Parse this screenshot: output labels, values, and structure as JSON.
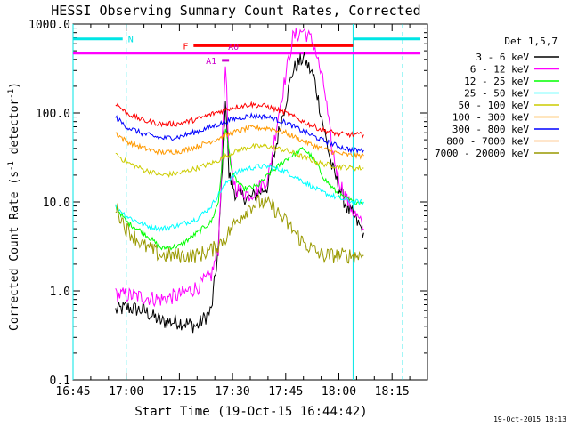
{
  "chart_data": {
    "type": "line",
    "title": "HESSI Observing Summary Count Rates, Corrected",
    "xlabel": "Start Time (19-Oct-15 16:44:42)",
    "ylabel_parts": [
      "Corrected Count Rate (s",
      "-1",
      " detector",
      "-1",
      ")"
    ],
    "ylabel": "Corrected Count Rate (s-1 detector-1)",
    "y_scale": "log",
    "ylim": [
      0.1,
      1000
    ],
    "y_ticks": [
      {
        "value": 0.1,
        "label": "0.1"
      },
      {
        "value": 1,
        "label": "1.0"
      },
      {
        "value": 10,
        "label": "10.0"
      },
      {
        "value": 100,
        "label": "100.0"
      },
      {
        "value": 1000,
        "label": "1000.0"
      }
    ],
    "xlim": [
      "16:45",
      "18:25"
    ],
    "x_ticks": [
      "16:45",
      "17:00",
      "17:15",
      "17:30",
      "17:45",
      "18:00",
      "18:15"
    ],
    "timestamp": "19-Oct-2015 18:13",
    "legend_title": "Det 1,5,7",
    "legend_placement": "right",
    "series": [
      {
        "name": "3 - 6 keV",
        "color": "#000000",
        "points": [
          [
            "16:57",
            0.6
          ],
          [
            "17:00",
            0.65
          ],
          [
            "17:05",
            0.6
          ],
          [
            "17:10",
            0.45
          ],
          [
            "17:15",
            0.45
          ],
          [
            "17:20",
            0.4
          ],
          [
            "17:24",
            0.6
          ],
          [
            "17:26",
            3
          ],
          [
            "17:28",
            150
          ],
          [
            "17:29",
            20
          ],
          [
            "17:31",
            12
          ],
          [
            "17:35",
            11
          ],
          [
            "17:40",
            15
          ],
          [
            "17:43",
            60
          ],
          [
            "17:47",
            300
          ],
          [
            "17:50",
            420
          ],
          [
            "17:53",
            250
          ],
          [
            "17:56",
            60
          ],
          [
            "17:58",
            25
          ],
          [
            "18:00",
            15
          ],
          [
            "18:02",
            9
          ],
          [
            "18:04",
            7
          ],
          [
            "18:07",
            4.5
          ]
        ]
      },
      {
        "name": "6 - 12 keV",
        "color": "#ff00ff",
        "points": [
          [
            "16:57",
            0.9
          ],
          [
            "17:00",
            0.9
          ],
          [
            "17:05",
            0.85
          ],
          [
            "17:10",
            0.8
          ],
          [
            "17:15",
            0.9
          ],
          [
            "17:20",
            1.1
          ],
          [
            "17:24",
            1.5
          ],
          [
            "17:26",
            3
          ],
          [
            "17:28",
            400
          ],
          [
            "17:29",
            30
          ],
          [
            "17:31",
            14
          ],
          [
            "17:35",
            12
          ],
          [
            "17:40",
            18
          ],
          [
            "17:43",
            100
          ],
          [
            "17:47",
            700
          ],
          [
            "17:50",
            850
          ],
          [
            "17:53",
            600
          ],
          [
            "17:56",
            180
          ],
          [
            "17:58",
            40
          ],
          [
            "18:00",
            18
          ],
          [
            "18:02",
            11
          ],
          [
            "18:04",
            8
          ],
          [
            "18:07",
            5
          ]
        ]
      },
      {
        "name": "12 - 25 keV",
        "color": "#00ff00",
        "points": [
          [
            "16:57",
            9
          ],
          [
            "17:00",
            6
          ],
          [
            "17:05",
            4.5
          ],
          [
            "17:10",
            3
          ],
          [
            "17:15",
            3.2
          ],
          [
            "17:20",
            4.5
          ],
          [
            "17:24",
            6
          ],
          [
            "17:26",
            10
          ],
          [
            "17:28",
            70
          ],
          [
            "17:30",
            20
          ],
          [
            "17:33",
            14
          ],
          [
            "17:37",
            15
          ],
          [
            "17:40",
            20
          ],
          [
            "17:45",
            30
          ],
          [
            "17:50",
            40
          ],
          [
            "17:53",
            30
          ],
          [
            "17:56",
            18
          ],
          [
            "18:00",
            12
          ],
          [
            "18:04",
            10
          ],
          [
            "18:07",
            10
          ]
        ]
      },
      {
        "name": "25 - 50 keV",
        "color": "#00ffff",
        "points": [
          [
            "16:57",
            9
          ],
          [
            "17:00",
            7
          ],
          [
            "17:05",
            5.5
          ],
          [
            "17:10",
            5
          ],
          [
            "17:15",
            5.5
          ],
          [
            "17:20",
            6.5
          ],
          [
            "17:24",
            9
          ],
          [
            "17:27",
            14
          ],
          [
            "17:30",
            20
          ],
          [
            "17:33",
            23
          ],
          [
            "17:37",
            25
          ],
          [
            "17:40",
            25
          ],
          [
            "17:45",
            22
          ],
          [
            "17:50",
            17
          ],
          [
            "17:55",
            13
          ],
          [
            "18:00",
            11
          ],
          [
            "18:04",
            10
          ],
          [
            "18:07",
            10
          ]
        ]
      },
      {
        "name": "50 - 100 keV",
        "color": "#cccc00",
        "points": [
          [
            "16:57",
            35
          ],
          [
            "17:00",
            28
          ],
          [
            "17:05",
            23
          ],
          [
            "17:10",
            20
          ],
          [
            "17:15",
            21
          ],
          [
            "17:20",
            24
          ],
          [
            "17:25",
            28
          ],
          [
            "17:30",
            36
          ],
          [
            "17:35",
            42
          ],
          [
            "17:40",
            42
          ],
          [
            "17:45",
            38
          ],
          [
            "17:50",
            32
          ],
          [
            "17:55",
            27
          ],
          [
            "18:00",
            25
          ],
          [
            "18:04",
            24
          ],
          [
            "18:07",
            24
          ]
        ]
      },
      {
        "name": "100 - 300 keV",
        "color": "#ff9900",
        "points": [
          [
            "16:57",
            60
          ],
          [
            "17:00",
            48
          ],
          [
            "17:05",
            40
          ],
          [
            "17:10",
            36
          ],
          [
            "17:15",
            37
          ],
          [
            "17:20",
            42
          ],
          [
            "17:25",
            50
          ],
          [
            "17:30",
            60
          ],
          [
            "17:35",
            68
          ],
          [
            "17:40",
            68
          ],
          [
            "17:45",
            60
          ],
          [
            "17:50",
            48
          ],
          [
            "17:55",
            40
          ],
          [
            "18:00",
            35
          ],
          [
            "18:04",
            33
          ],
          [
            "18:07",
            33
          ]
        ]
      },
      {
        "name": "300 - 800 keV",
        "color": "#0000ff",
        "points": [
          [
            "16:57",
            90
          ],
          [
            "17:00",
            70
          ],
          [
            "17:05",
            58
          ],
          [
            "17:10",
            52
          ],
          [
            "17:15",
            54
          ],
          [
            "17:20",
            62
          ],
          [
            "17:25",
            72
          ],
          [
            "17:30",
            85
          ],
          [
            "17:35",
            93
          ],
          [
            "17:40",
            90
          ],
          [
            "17:45",
            78
          ],
          [
            "17:50",
            62
          ],
          [
            "17:55",
            50
          ],
          [
            "18:00",
            42
          ],
          [
            "18:04",
            38
          ],
          [
            "18:07",
            38
          ]
        ]
      },
      {
        "name": "800 - 7000 keV",
        "color": "#ff9933",
        "points": []
      },
      {
        "name": "7000 - 20000 keV",
        "color": "#999900",
        "points": [
          [
            "16:57",
            9
          ],
          [
            "17:00",
            5
          ],
          [
            "17:05",
            3.2
          ],
          [
            "17:10",
            2.5
          ],
          [
            "17:15",
            2.5
          ],
          [
            "17:20",
            2.5
          ],
          [
            "17:25",
            3
          ],
          [
            "17:28",
            4
          ],
          [
            "17:31",
            6
          ],
          [
            "17:35",
            9
          ],
          [
            "17:38",
            10
          ],
          [
            "17:41",
            9
          ],
          [
            "17:45",
            6
          ],
          [
            "17:50",
            3.5
          ],
          [
            "17:55",
            2.5
          ],
          [
            "18:00",
            2.5
          ],
          [
            "18:04",
            2.5
          ],
          [
            "18:07",
            2.5
          ]
        ]
      },
      {
        "name": "",
        "color": "#ff0000",
        "points": [
          [
            "16:57",
            130
          ],
          [
            "17:00",
            100
          ],
          [
            "17:05",
            82
          ],
          [
            "17:10",
            75
          ],
          [
            "17:15",
            76
          ],
          [
            "17:20",
            85
          ],
          [
            "17:25",
            100
          ],
          [
            "17:30",
            115
          ],
          [
            "17:35",
            125
          ],
          [
            "17:40",
            118
          ],
          [
            "17:45",
            100
          ],
          [
            "17:50",
            80
          ],
          [
            "17:55",
            65
          ],
          [
            "18:00",
            58
          ],
          [
            "18:04",
            57
          ],
          [
            "18:07",
            57
          ]
        ]
      }
    ],
    "annotations": {
      "N": {
        "label": "N",
        "segments": [
          [
            "16:45",
            "16:59"
          ],
          [
            "18:04",
            "18:23"
          ]
        ],
        "level": 680,
        "color": "#00e5e5"
      },
      "F": {
        "label": "F",
        "segment": [
          "17:19",
          "18:04"
        ],
        "level": 570,
        "color": "#ff0000"
      },
      "A0": {
        "label": "A0",
        "segment": [
          "17:28",
          "17:28"
        ],
        "level": 470,
        "color": "#cc00cc"
      },
      "A1": {
        "label": "A1",
        "segment": [
          "17:27",
          "17:29"
        ],
        "level": 390,
        "color": "#cc00cc"
      },
      "magenta_bar": {
        "segment": [
          "16:45",
          "18:23"
        ],
        "level": 470,
        "color": "#ff00ff"
      },
      "vlines": [
        {
          "time": "16:45",
          "style": "solid",
          "color": "#00e5e5"
        },
        {
          "time": "17:00",
          "style": "dashed",
          "color": "#00e5e5"
        },
        {
          "time": "18:04",
          "style": "solid",
          "color": "#00e5e5"
        },
        {
          "time": "18:18",
          "style": "dashed",
          "color": "#00e5e5"
        }
      ]
    }
  }
}
